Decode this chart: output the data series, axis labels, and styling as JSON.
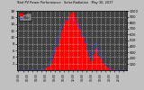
{
  "title": "Total PV Power Performance   Solar Radiation   May 30, 2017",
  "ylabel_left": "kW",
  "ylabel_right": "W/m²",
  "bg_color": "#c0c0c0",
  "plot_bg": "#404040",
  "bar_color": "#ff0000",
  "line_color": "#4444ff",
  "grid_color": "#ffffff",
  "n_points": 48,
  "pv_power": [
    0,
    0,
    0,
    0,
    0,
    0,
    0,
    0,
    0,
    0,
    0.05,
    0.15,
    0.4,
    1.0,
    1.8,
    3.2,
    5.0,
    7.2,
    9.5,
    11.8,
    13.5,
    15.0,
    16.5,
    17.2,
    17.5,
    15.5,
    14.2,
    12.5,
    10.5,
    8.2,
    5.8,
    4.2,
    2.8,
    4.8,
    6.5,
    4.5,
    3.5,
    2.2,
    1.3,
    0.7,
    0.3,
    0.15,
    0.05,
    0,
    0,
    0,
    0,
    0
  ],
  "solar_rad": [
    0,
    0,
    0,
    0,
    0,
    0,
    0,
    0,
    0,
    0,
    5,
    15,
    40,
    90,
    160,
    260,
    380,
    510,
    630,
    730,
    800,
    840,
    860,
    870,
    865,
    820,
    760,
    690,
    600,
    500,
    390,
    290,
    210,
    350,
    470,
    310,
    240,
    150,
    90,
    40,
    15,
    5,
    1,
    0,
    0,
    0,
    0,
    0
  ],
  "ylim_left": [
    0,
    18
  ],
  "ylim_right": [
    0,
    1000
  ],
  "yticks_left": [
    2,
    4,
    6,
    8,
    10,
    12,
    14,
    16,
    18
  ],
  "yticks_right": [
    100,
    200,
    300,
    400,
    500,
    600,
    700,
    800,
    900,
    1000
  ],
  "tick_color": "#000000",
  "tick_label_color": "#000000",
  "spine_color": "#000000",
  "legend_kw": "kW",
  "legend_wm2": "W/m²"
}
